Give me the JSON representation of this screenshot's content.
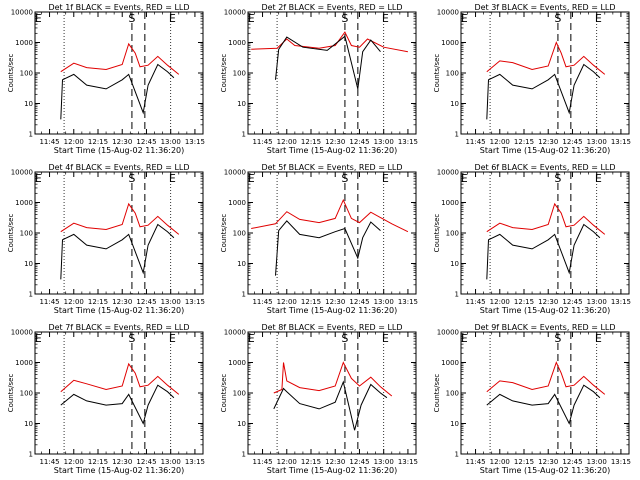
{
  "colors": {
    "events": "#000000",
    "lld": "#e00000",
    "axes": "#000000",
    "background": "#ffffff"
  },
  "x_tick_labels": [
    "11:45",
    "12:00",
    "12:15",
    "12:30",
    "12:45",
    "13:00",
    "13:15"
  ],
  "y_tick_labels": [
    "1",
    "10",
    "100",
    "1000",
    "10000"
  ],
  "chart_data": [
    {
      "type": "line",
      "title": "Det 1f BLACK = Events, RED = LLD",
      "xlabel": "Start Time (15-Aug-02 11:36:20)",
      "ylabel": "Counts/sec",
      "y_scale": "log",
      "ylim": [
        1,
        10000
      ],
      "xlim": [
        "11:36",
        "13:20"
      ],
      "marks": [
        "S",
        "E",
        "E"
      ],
      "series": [
        {
          "color": "red",
          "x": [
            "11:52",
            "12:00",
            "12:08",
            "12:20",
            "12:30",
            "12:34",
            "12:38",
            "12:41",
            "12:46",
            "12:52",
            "12:58",
            "13:05"
          ],
          "values": [
            110,
            210,
            150,
            130,
            190,
            900,
            450,
            160,
            180,
            350,
            180,
            90
          ]
        },
        {
          "color": "black",
          "x": [
            "11:52",
            "11:53",
            "12:00",
            "12:08",
            "12:20",
            "12:30",
            "12:34",
            "12:43",
            "12:46",
            "12:52",
            "12:58",
            "13:02"
          ],
          "values": [
            3,
            60,
            90,
            40,
            30,
            60,
            90,
            5,
            40,
            190,
            110,
            70
          ]
        }
      ]
    },
    {
      "type": "line",
      "title": "Det 2f BLACK = Events, RED = LLD",
      "xlabel": "Start Time (15-Aug-02 11:36:20)",
      "ylabel": "Counts/sec",
      "y_scale": "log",
      "ylim": [
        1,
        10000
      ],
      "xlim": [
        "11:36",
        "13:20"
      ],
      "marks": [
        "S",
        "E",
        "E"
      ],
      "series": [
        {
          "color": "red",
          "x": [
            "11:38",
            "11:54",
            "12:00",
            "12:05",
            "12:20",
            "12:30",
            "12:36",
            "12:40",
            "12:45",
            "12:50",
            "13:00",
            "13:15"
          ],
          "values": [
            600,
            650,
            1300,
            800,
            650,
            800,
            2200,
            800,
            700,
            1300,
            700,
            500
          ]
        },
        {
          "color": "black",
          "x": [
            "11:53",
            "11:55",
            "12:00",
            "12:10",
            "12:25",
            "12:36",
            "12:44",
            "12:47",
            "12:52",
            "12:58"
          ],
          "values": [
            60,
            600,
            1500,
            700,
            550,
            1600,
            30,
            500,
            1200,
            500
          ]
        }
      ]
    },
    {
      "type": "line",
      "title": "Det 3f BLACK = Events, RED = LLD",
      "xlabel": "Start Time (15-Aug-02 11:36:20)",
      "ylabel": "Counts/sec",
      "y_scale": "log",
      "ylim": [
        1,
        10000
      ],
      "xlim": [
        "11:36",
        "13:20"
      ],
      "marks": [
        "S",
        "E",
        "E"
      ],
      "series": [
        {
          "color": "red",
          "x": [
            "11:52",
            "12:00",
            "12:08",
            "12:20",
            "12:30",
            "12:35",
            "12:38",
            "12:41",
            "12:46",
            "12:52",
            "12:58",
            "13:05"
          ],
          "values": [
            110,
            250,
            220,
            130,
            170,
            1000,
            450,
            160,
            180,
            350,
            180,
            90
          ]
        },
        {
          "color": "black",
          "x": [
            "11:52",
            "11:53",
            "12:00",
            "12:08",
            "12:20",
            "12:30",
            "12:34",
            "12:43",
            "12:46",
            "12:52",
            "12:58",
            "13:02"
          ],
          "values": [
            3,
            60,
            90,
            40,
            30,
            60,
            90,
            5,
            40,
            190,
            110,
            70
          ]
        }
      ]
    },
    {
      "type": "line",
      "title": "Det 4f BLACK = Events, RED = LLD",
      "xlabel": "Start Time (15-Aug-02 11:36:20)",
      "ylabel": "Counts/sec",
      "y_scale": "log",
      "ylim": [
        1,
        10000
      ],
      "xlim": [
        "11:36",
        "13:20"
      ],
      "marks": [
        "S",
        "E",
        "E"
      ],
      "series": [
        {
          "color": "red",
          "x": [
            "11:52",
            "12:00",
            "12:08",
            "12:20",
            "12:30",
            "12:34",
            "12:38",
            "12:41",
            "12:46",
            "12:52",
            "12:58",
            "13:05"
          ],
          "values": [
            110,
            210,
            150,
            130,
            190,
            900,
            450,
            160,
            180,
            350,
            180,
            90
          ]
        },
        {
          "color": "black",
          "x": [
            "11:52",
            "11:53",
            "12:00",
            "12:08",
            "12:20",
            "12:30",
            "12:34",
            "12:43",
            "12:46",
            "12:52",
            "12:58",
            "13:02"
          ],
          "values": [
            3,
            60,
            90,
            40,
            30,
            60,
            90,
            5,
            40,
            190,
            110,
            70
          ]
        }
      ]
    },
    {
      "type": "line",
      "title": "Det 5f BLACK = Events, RED = LLD",
      "xlabel": "Start Time (15-Aug-02 11:36:20)",
      "ylabel": "Counts/sec",
      "y_scale": "log",
      "ylim": [
        1,
        10000
      ],
      "xlim": [
        "11:36",
        "13:20"
      ],
      "marks": [
        "S",
        "E",
        "E"
      ],
      "series": [
        {
          "color": "red",
          "x": [
            "11:38",
            "11:53",
            "12:00",
            "12:08",
            "12:20",
            "12:30",
            "12:35",
            "12:40",
            "12:45",
            "12:52",
            "13:05",
            "13:15"
          ],
          "values": [
            140,
            200,
            500,
            280,
            220,
            300,
            1200,
            300,
            220,
            480,
            200,
            110
          ]
        },
        {
          "color": "black",
          "x": [
            "11:53",
            "11:55",
            "12:00",
            "12:08",
            "12:20",
            "12:30",
            "12:36",
            "12:44",
            "12:47",
            "12:52",
            "12:58"
          ],
          "values": [
            4,
            120,
            250,
            90,
            70,
            110,
            140,
            15,
            70,
            230,
            120
          ]
        }
      ]
    },
    {
      "type": "line",
      "title": "Det 6f BLACK = Events, RED = LLD",
      "xlabel": "Start Time (15-Aug-02 11:36:20)",
      "ylabel": "Counts/sec",
      "y_scale": "log",
      "ylim": [
        1,
        10000
      ],
      "xlim": [
        "11:36",
        "13:20"
      ],
      "marks": [
        "S",
        "E",
        "E"
      ],
      "series": [
        {
          "color": "red",
          "x": [
            "11:52",
            "12:00",
            "12:08",
            "12:20",
            "12:30",
            "12:34",
            "12:38",
            "12:41",
            "12:46",
            "12:52",
            "12:58",
            "13:05"
          ],
          "values": [
            110,
            210,
            150,
            130,
            190,
            900,
            450,
            160,
            180,
            350,
            180,
            90
          ]
        },
        {
          "color": "black",
          "x": [
            "11:52",
            "11:53",
            "12:00",
            "12:08",
            "12:20",
            "12:30",
            "12:34",
            "12:43",
            "12:46",
            "12:52",
            "12:58",
            "13:02"
          ],
          "values": [
            3,
            60,
            90,
            40,
            30,
            60,
            90,
            5,
            40,
            190,
            110,
            70
          ]
        }
      ]
    },
    {
      "type": "line",
      "title": "Det 7f BLACK = Events, RED = LLD",
      "xlabel": "Start Time (15-Aug-02 11:36:20)",
      "ylabel": "Counts/sec",
      "y_scale": "log",
      "ylim": [
        1,
        10000
      ],
      "xlim": [
        "11:36",
        "13:20"
      ],
      "marks": [
        "S",
        "E",
        "E"
      ],
      "series": [
        {
          "color": "red",
          "x": [
            "11:52",
            "12:00",
            "12:08",
            "12:20",
            "12:30",
            "12:34",
            "12:38",
            "12:41",
            "12:46",
            "12:52",
            "12:58",
            "13:05"
          ],
          "values": [
            110,
            260,
            200,
            130,
            170,
            900,
            450,
            160,
            180,
            350,
            180,
            90
          ]
        },
        {
          "color": "black",
          "x": [
            "11:52",
            "12:00",
            "12:08",
            "12:20",
            "12:30",
            "12:34",
            "12:43",
            "12:46",
            "12:52",
            "12:58",
            "13:02"
          ],
          "values": [
            40,
            90,
            55,
            40,
            45,
            90,
            10,
            40,
            180,
            110,
            70
          ]
        }
      ]
    },
    {
      "type": "line",
      "title": "Det 8f BLACK = Events, RED = LLD",
      "xlabel": "Start Time (15-Aug-02 11:36:20)",
      "ylabel": "Counts/sec",
      "y_scale": "log",
      "ylim": [
        1,
        10000
      ],
      "xlim": [
        "11:36",
        "13:20"
      ],
      "marks": [
        "S",
        "E",
        "E"
      ],
      "series": [
        {
          "color": "red",
          "x": [
            "11:52",
            "11:57",
            "11:58",
            "12:00",
            "12:08",
            "12:20",
            "12:30",
            "12:35",
            "12:40",
            "12:45",
            "12:52",
            "12:58",
            "13:05"
          ],
          "values": [
            100,
            130,
            1000,
            250,
            150,
            120,
            170,
            1000,
            300,
            170,
            330,
            160,
            80
          ]
        },
        {
          "color": "black",
          "x": [
            "11:52",
            "11:58",
            "12:00",
            "12:08",
            "12:20",
            "12:30",
            "12:35",
            "12:42",
            "12:46",
            "12:52",
            "12:58",
            "13:02"
          ],
          "values": [
            30,
            140,
            110,
            45,
            30,
            50,
            230,
            6,
            40,
            190,
            100,
            70
          ]
        }
      ]
    },
    {
      "type": "line",
      "title": "Det 9f BLACK = Events, RED = LLD",
      "xlabel": "Start Time (15-Aug-02 11:36:20)",
      "ylabel": "Counts/sec",
      "y_scale": "log",
      "ylim": [
        1,
        10000
      ],
      "xlim": [
        "11:36",
        "13:20"
      ],
      "marks": [
        "S",
        "E",
        "E"
      ],
      "series": [
        {
          "color": "red",
          "x": [
            "11:52",
            "12:00",
            "12:08",
            "12:20",
            "12:30",
            "12:35",
            "12:38",
            "12:41",
            "12:46",
            "12:52",
            "12:58",
            "13:05"
          ],
          "values": [
            110,
            250,
            220,
            130,
            170,
            1000,
            450,
            160,
            180,
            350,
            180,
            90
          ]
        },
        {
          "color": "black",
          "x": [
            "11:52",
            "12:00",
            "12:08",
            "12:20",
            "12:30",
            "12:34",
            "12:43",
            "12:46",
            "12:52",
            "12:58",
            "13:02"
          ],
          "values": [
            40,
            90,
            55,
            40,
            45,
            90,
            10,
            40,
            180,
            110,
            70
          ]
        }
      ]
    }
  ]
}
